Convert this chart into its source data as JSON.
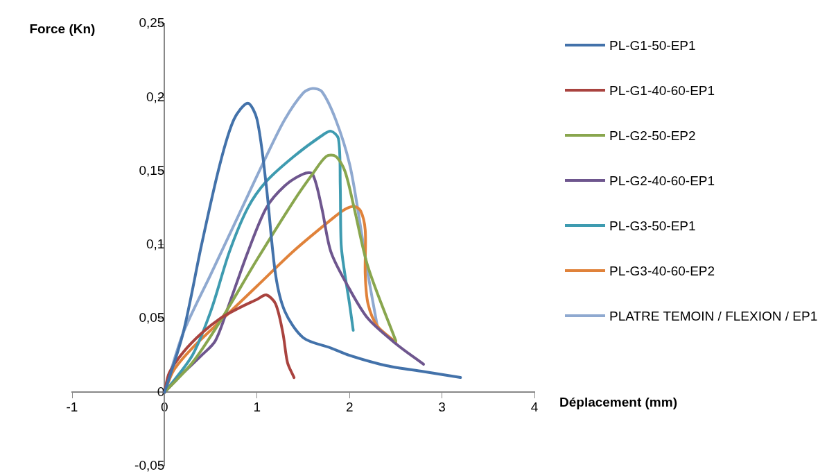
{
  "chart_data": {
    "type": "line",
    "xlabel": "Déplacement (mm)",
    "ylabel": "Force (Kn)",
    "xlim": [
      -1,
      4
    ],
    "xticks": [
      -1,
      0,
      1,
      2,
      3,
      4
    ],
    "ylim": [
      -0.05,
      0.25
    ],
    "yticks": [
      {
        "value": -0.05,
        "label": "-0,05"
      },
      {
        "value": 0,
        "label": "0"
      },
      {
        "value": 0.05,
        "label": "0,05"
      },
      {
        "value": 0.1,
        "label": "0,1"
      },
      {
        "value": 0.15,
        "label": "0,15"
      },
      {
        "value": 0.2,
        "label": "0,2"
      },
      {
        "value": 0.25,
        "label": "0,25"
      }
    ],
    "grid": false,
    "legend": "right",
    "marker": "none",
    "line_style": "solid",
    "series": [
      {
        "name": "PL-G1-50-EP1",
        "color": "#4372aa",
        "x": [
          0,
          0.2,
          0.4,
          0.6,
          0.75,
          0.9,
          1.0,
          1.1,
          1.2,
          1.3,
          1.5,
          1.8,
          2.0,
          2.4,
          2.8,
          3.2
        ],
        "values": [
          0,
          0.04,
          0.1,
          0.155,
          0.185,
          0.196,
          0.185,
          0.14,
          0.08,
          0.055,
          0.037,
          0.03,
          0.025,
          0.018,
          0.014,
          0.01
        ]
      },
      {
        "name": "PL-G1-40-60-EP1",
        "color": "#a9433f",
        "x": [
          0,
          0.05,
          0.2,
          0.4,
          0.6,
          0.8,
          1.0,
          1.1,
          1.2,
          1.28,
          1.33,
          1.4
        ],
        "values": [
          0,
          0.013,
          0.027,
          0.04,
          0.05,
          0.057,
          0.063,
          0.066,
          0.06,
          0.04,
          0.02,
          0.01
        ]
      },
      {
        "name": "PL-G2-50-EP2",
        "color": "#89a64e",
        "x": [
          0,
          0.3,
          0.6,
          1.0,
          1.4,
          1.6,
          1.75,
          1.85,
          1.95,
          2.05,
          2.2,
          2.5
        ],
        "values": [
          0,
          0.02,
          0.048,
          0.09,
          0.13,
          0.148,
          0.16,
          0.16,
          0.15,
          0.125,
          0.085,
          0.035
        ]
      },
      {
        "name": "PL-G2-40-60-EP1",
        "color": "#6e568e",
        "x": [
          0,
          0.2,
          0.4,
          0.55,
          0.7,
          0.9,
          1.1,
          1.3,
          1.5,
          1.6,
          1.7,
          1.8,
          2.0,
          2.2,
          2.5,
          2.8
        ],
        "values": [
          0,
          0.013,
          0.025,
          0.035,
          0.06,
          0.095,
          0.125,
          0.14,
          0.148,
          0.148,
          0.125,
          0.095,
          0.07,
          0.05,
          0.033,
          0.019
        ]
      },
      {
        "name": "PL-G3-50-EP1",
        "color": "#3e9bb0",
        "x": [
          0,
          0.3,
          0.5,
          0.7,
          0.9,
          1.1,
          1.4,
          1.7,
          1.8,
          1.88,
          1.9,
          1.91,
          1.95,
          2.0,
          2.04
        ],
        "values": [
          0,
          0.025,
          0.055,
          0.095,
          0.125,
          0.143,
          0.16,
          0.174,
          0.177,
          0.172,
          0.14,
          0.1,
          0.08,
          0.06,
          0.042
        ]
      },
      {
        "name": "PL-G3-40-60-EP2",
        "color": "#e0823a",
        "x": [
          0,
          0.1,
          0.3,
          0.6,
          1.0,
          1.4,
          1.8,
          1.95,
          2.05,
          2.12,
          2.17,
          2.17,
          2.2,
          2.3,
          2.5
        ],
        "values": [
          0,
          0.015,
          0.03,
          0.048,
          0.072,
          0.096,
          0.117,
          0.124,
          0.126,
          0.123,
          0.11,
          0.08,
          0.06,
          0.045,
          0.034
        ]
      },
      {
        "name": "PLATRE TEMOIN / FLEXION / EP1",
        "color": "#8fa9d0",
        "x": [
          0,
          0.2,
          0.5,
          0.8,
          1.1,
          1.3,
          1.5,
          1.6,
          1.7,
          1.85,
          2.0,
          2.1,
          2.2,
          2.3
        ],
        "values": [
          0,
          0.04,
          0.08,
          0.12,
          0.16,
          0.185,
          0.203,
          0.206,
          0.204,
          0.185,
          0.155,
          0.12,
          0.08,
          0.045
        ]
      }
    ]
  }
}
